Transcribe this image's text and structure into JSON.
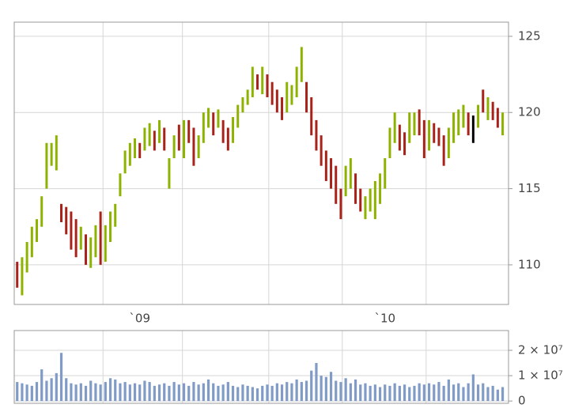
{
  "chart_data": [
    {
      "type": "ohlc",
      "xlim": [
        -0.6,
        100.2
      ],
      "xticks": [
        {
          "value": 25,
          "label": "`09"
        },
        {
          "value": 75,
          "label": "`10"
        }
      ],
      "xgrid": [
        17.5,
        33.7,
        51.3,
        66.3,
        83.4
      ],
      "ylim": [
        107.4,
        125.93
      ],
      "yticks": [
        110,
        115,
        120,
        125
      ],
      "grid": true,
      "high": [
        110.2,
        110.5,
        111.5,
        112.5,
        113,
        114.5,
        118,
        118,
        118.5,
        114,
        113.8,
        113.5,
        113,
        112.5,
        112,
        111.8,
        112.6,
        113.5,
        112.6,
        113.5,
        114,
        116,
        117.5,
        118,
        118.3,
        118,
        119,
        119.3,
        118.8,
        119.5,
        119,
        117,
        118.5,
        119.2,
        119.5,
        119.5,
        119,
        118.5,
        120,
        120.3,
        120,
        120.2,
        119.5,
        119,
        119.7,
        120.5,
        121,
        121.5,
        123,
        122.5,
        123,
        122.5,
        122,
        121.5,
        121,
        122,
        121.8,
        123,
        124.3,
        122,
        121,
        119.5,
        118.5,
        117.5,
        117,
        116.5,
        115,
        116.5,
        117,
        116,
        115,
        114.5,
        115,
        115.5,
        116,
        117,
        119,
        120,
        119.2,
        118.7,
        120,
        120,
        120.2,
        119.5,
        119.5,
        119.3,
        119,
        118.5,
        119,
        120,
        120.2,
        120.5,
        120,
        119.8,
        120.5,
        121.5,
        121,
        120.7,
        120.3,
        120
      ],
      "low": [
        108.5,
        108,
        109.5,
        110.5,
        111.5,
        112.5,
        115,
        116.5,
        116.2,
        112.8,
        112,
        111,
        110.5,
        111,
        110,
        109.8,
        110.5,
        110,
        110.2,
        111.5,
        112.5,
        114.5,
        116,
        116.5,
        117,
        117,
        117.5,
        117.8,
        117.5,
        118,
        117.5,
        115,
        117,
        117.5,
        117,
        118,
        116.5,
        117,
        118,
        119,
        118.5,
        119,
        118,
        117.5,
        118,
        119,
        120,
        120.5,
        121,
        121.5,
        121.2,
        121,
        120.5,
        120,
        119.5,
        120,
        120.5,
        121,
        122,
        120,
        118.5,
        117.5,
        116.5,
        115.5,
        115,
        114,
        113,
        114.5,
        115,
        114,
        113.5,
        113,
        113.5,
        113,
        114,
        115,
        117,
        118,
        117.5,
        117.2,
        118,
        118.5,
        118.5,
        117,
        117.5,
        118,
        117.8,
        116.5,
        117,
        118,
        118.5,
        119,
        118.5,
        118,
        119,
        120,
        119.5,
        119.5,
        119,
        118.5
      ],
      "bar_colors": [
        "#a8221a",
        "#8db300",
        "#8db300",
        "#8db300",
        "#8db300",
        "#8db300",
        "#8db300",
        "#8db300",
        "#8db300",
        "#a8221a",
        "#a8221a",
        "#a8221a",
        "#a8221a",
        "#8db300",
        "#a8221a",
        "#8db300",
        "#8db300",
        "#a8221a",
        "#8db300",
        "#8db300",
        "#8db300",
        "#8db300",
        "#8db300",
        "#8db300",
        "#8db300",
        "#a8221a",
        "#8db300",
        "#8db300",
        "#a8221a",
        "#8db300",
        "#a8221a",
        "#8db300",
        "#8db300",
        "#a8221a",
        "#8db300",
        "#a8221a",
        "#a8221a",
        "#8db300",
        "#8db300",
        "#8db300",
        "#a8221a",
        "#8db300",
        "#a8221a",
        "#a8221a",
        "#8db300",
        "#8db300",
        "#8db300",
        "#8db300",
        "#8db300",
        "#a8221a",
        "#8db300",
        "#a8221a",
        "#a8221a",
        "#a8221a",
        "#a8221a",
        "#8db300",
        "#8db300",
        "#8db300",
        "#8db300",
        "#a8221a",
        "#a8221a",
        "#a8221a",
        "#a8221a",
        "#a8221a",
        "#a8221a",
        "#a8221a",
        "#a8221a",
        "#8db300",
        "#8db300",
        "#a8221a",
        "#a8221a",
        "#8db300",
        "#8db300",
        "#8db300",
        "#8db300",
        "#8db300",
        "#8db300",
        "#8db300",
        "#a8221a",
        "#a8221a",
        "#8db300",
        "#8db300",
        "#a8221a",
        "#a8221a",
        "#8db300",
        "#a8221a",
        "#a8221a",
        "#a8221a",
        "#8db300",
        "#8db300",
        "#8db300",
        "#8db300",
        "#a8221a",
        "#000000",
        "#8db300",
        "#a8221a",
        "#8db300",
        "#a8221a",
        "#a8221a",
        "#8db300"
      ]
    },
    {
      "type": "volume",
      "xlim": [
        -0.6,
        100.2
      ],
      "xgrid": [
        17.5,
        33.7,
        51.3,
        66.3,
        83.4
      ],
      "ylim": [
        -900000,
        27800000
      ],
      "yticks": [
        0,
        {
          "value": 10000000,
          "label": "1 × 10⁷"
        },
        {
          "value": 20000000,
          "label": "2 × 10⁷"
        }
      ],
      "grid": true,
      "color": "#7f9bc6",
      "values": [
        7500000,
        7000000,
        6500000,
        6000000,
        7500000,
        12500000,
        8000000,
        9000000,
        11000000,
        19000000,
        9000000,
        7000000,
        6500000,
        7000000,
        6000000,
        8000000,
        7000000,
        6500000,
        7500000,
        9000000,
        8500000,
        7000000,
        7500000,
        6500000,
        7000000,
        6500000,
        8000000,
        7500000,
        6000000,
        6500000,
        7000000,
        6000000,
        7500000,
        6500000,
        7000000,
        6000000,
        7500000,
        6500000,
        7000000,
        8500000,
        7000000,
        6000000,
        6500000,
        7500000,
        6000000,
        5500000,
        6500000,
        6000000,
        5500000,
        5000000,
        6000000,
        6500000,
        6000000,
        7000000,
        6500000,
        7500000,
        7000000,
        8500000,
        7500000,
        8000000,
        12000000,
        15000000,
        10000000,
        9500000,
        11500000,
        8000000,
        7500000,
        9000000,
        7000000,
        8500000,
        6500000,
        7000000,
        6000000,
        6500000,
        5500000,
        6500000,
        6000000,
        7000000,
        6000000,
        6500000,
        5500000,
        6000000,
        7000000,
        6500000,
        7000000,
        6500000,
        7500000,
        6000000,
        8500000,
        6500000,
        7000000,
        5500000,
        7000000,
        10500000,
        6500000,
        7000000,
        5500000,
        6000000,
        4500000,
        5500000
      ]
    }
  ]
}
